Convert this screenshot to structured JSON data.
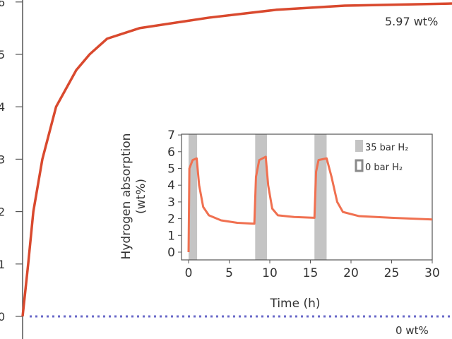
{
  "chart_data": [
    {
      "type": "line",
      "title": "",
      "xlabel": "",
      "ylabel": "",
      "ylim": [
        0,
        6
      ],
      "y_ticks": [
        "0",
        "1",
        "2",
        "3",
        "4",
        "5",
        "6"
      ],
      "grid": false,
      "series": [
        {
          "x": [
            0,
            1.3,
            2.5,
            4.6,
            7.8,
            12.5,
            15.6,
            19.7,
            27.2,
            43.3,
            59,
            75,
            100
          ],
          "y": [
            0,
            1,
            2,
            3,
            4,
            4.7,
            5,
            5.3,
            5.5,
            5.7,
            5.85,
            5.93,
            5.97
          ],
          "color": "#d9492e"
        },
        {
          "x": [
            0,
            100
          ],
          "y": [
            0,
            0
          ],
          "color": "#6a6ac8",
          "style": "dotted"
        }
      ],
      "annotations": [
        "5.97 wt%",
        "0 wt%"
      ]
    },
    {
      "type": "line",
      "title": "",
      "xlabel": "Time (h)",
      "ylabel": "Hydrogen absorption (wt%)",
      "xlim": [
        0,
        30
      ],
      "ylim": [
        0,
        7
      ],
      "x_ticks": [
        "0",
        "5",
        "10",
        "15",
        "20",
        "25",
        "30"
      ],
      "y_ticks": [
        "0",
        "1",
        "2",
        "3",
        "4",
        "5",
        "6",
        "7"
      ],
      "grid": false,
      "legend_position": "top-right",
      "legend": [
        {
          "label": "35 bar H₂",
          "color": "#c4c4c4",
          "swatch": "filled"
        },
        {
          "label": "0 bar H₂",
          "color": "#8a8a8a",
          "swatch": "outline"
        }
      ],
      "shaded_intervals_35bar": [
        [
          0,
          1.05
        ],
        [
          8.2,
          9.65
        ],
        [
          15.5,
          17.0
        ]
      ],
      "series": [
        {
          "color": "#f07050",
          "x": [
            0,
            0.1,
            0.5,
            1.0,
            1.3,
            1.8,
            2.5,
            4,
            6,
            8.1,
            8.3,
            8.7,
            9.5,
            9.8,
            10.3,
            11,
            13,
            15.5,
            15.7,
            16,
            17,
            17.6,
            18.3,
            19,
            21,
            25,
            30
          ],
          "y": [
            0,
            5,
            5.5,
            5.6,
            4,
            2.7,
            2.2,
            1.9,
            1.75,
            1.7,
            4.5,
            5.5,
            5.7,
            4,
            2.6,
            2.2,
            2.1,
            2.05,
            4.8,
            5.5,
            5.6,
            4.5,
            3,
            2.4,
            2.15,
            2.05,
            1.95
          ]
        }
      ]
    }
  ]
}
